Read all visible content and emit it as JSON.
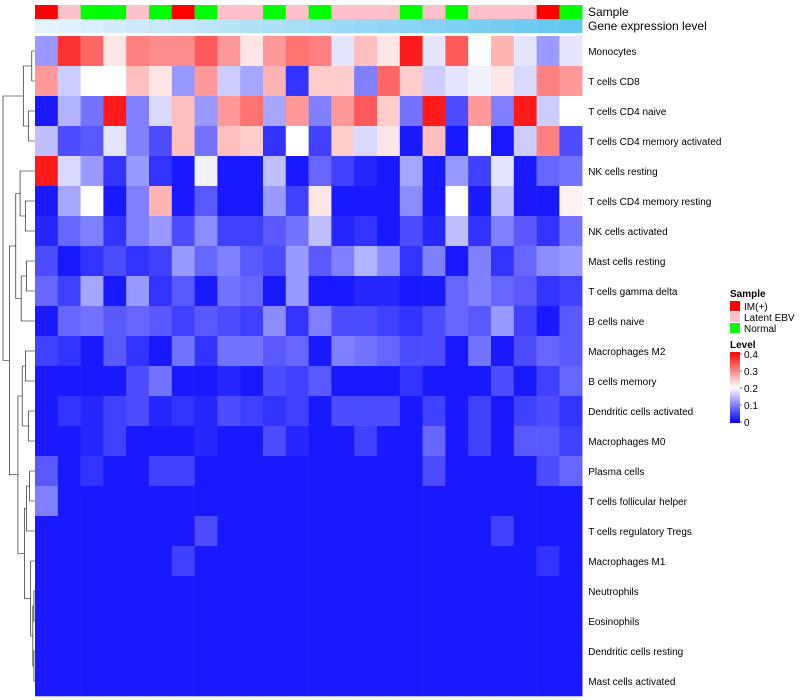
{
  "chart_data": {
    "type": "heatmap",
    "annotation_labels": [
      "Sample",
      "Gene expression level"
    ],
    "sample_legend": {
      "title": "Sample",
      "entries": [
        {
          "label": "IM(+)",
          "color": "#ff0000"
        },
        {
          "label": "Latent EBV",
          "color": "#ffc0cb"
        },
        {
          "label": "Normal",
          "color": "#00ff00"
        }
      ]
    },
    "level_legend": {
      "title": "Level",
      "ticks": [
        "0.4",
        "0.3",
        "0.2",
        "0.1",
        "0"
      ],
      "range": [
        0,
        0.4
      ],
      "colors": {
        "low": "#0000ff",
        "mid": "#ffffff",
        "high": "#ff0000"
      }
    },
    "sample_groups": [
      "IM(+)",
      "Latent EBV",
      "Normal",
      "Normal",
      "Latent EBV",
      "Normal",
      "IM(+)",
      "Normal",
      "Latent EBV",
      "Latent EBV",
      "Normal",
      "Latent EBV",
      "Normal",
      "Latent EBV",
      "Latent EBV",
      "Latent EBV",
      "Normal",
      "Latent EBV",
      "Normal",
      "Latent EBV",
      "Latent EBV",
      "Latent EBV",
      "IM(+)",
      "Normal"
    ],
    "expression_level": [
      0.02,
      0.06,
      0.1,
      0.14,
      0.18,
      0.22,
      0.26,
      0.3,
      0.34,
      0.38,
      0.42,
      0.46,
      0.5,
      0.54,
      0.58,
      0.62,
      0.66,
      0.7,
      0.74,
      0.78,
      0.82,
      0.86,
      0.9,
      0.94
    ],
    "rows": [
      "Monocytes",
      "T cells CD8",
      "T cells CD4 naive",
      "T cells CD4 memory activated",
      "NK cells resting",
      "T cells CD4 memory resting",
      "NK cells activated",
      "Mast cells resting",
      "T cells gamma delta",
      "B cells naive",
      "Macrophages M2",
      "B cells memory",
      "Dendritic cells activated",
      "Macrophages M0",
      "Plasma cells",
      "T cells follicular helper",
      "T cells regulatory  Tregs",
      "Macrophages M1",
      "Neutrophils",
      "Eosinophils",
      "Dendritic cells resting",
      "Mast cells activated"
    ],
    "values": [
      [
        0.12,
        0.36,
        0.32,
        0.22,
        0.3,
        0.29,
        0.29,
        0.33,
        0.28,
        0.22,
        0.28,
        0.31,
        0.3,
        0.18,
        0.25,
        0.22,
        0.38,
        0.18,
        0.33,
        0.2,
        0.26,
        0.18,
        0.12,
        0.18
      ],
      [
        0.28,
        0.16,
        0.2,
        0.2,
        0.25,
        0.22,
        0.12,
        0.28,
        0.16,
        0.13,
        0.26,
        0.04,
        0.24,
        0.24,
        0.1,
        0.32,
        0.24,
        0.16,
        0.18,
        0.19,
        0.22,
        0.17,
        0.3,
        0.28
      ],
      [
        0.02,
        0.14,
        0.09,
        0.38,
        0.1,
        0.17,
        0.25,
        0.12,
        0.28,
        0.31,
        0.13,
        0.28,
        0.1,
        0.28,
        0.33,
        0.24,
        0.09,
        0.38,
        0.06,
        0.28,
        0.1,
        0.38,
        0.16,
        0.2
      ],
      [
        0.15,
        0.06,
        0.07,
        0.18,
        0.1,
        0.06,
        0.25,
        0.09,
        0.25,
        0.24,
        0.04,
        0.2,
        0.05,
        0.24,
        0.17,
        0.22,
        0.02,
        0.25,
        0.02,
        0.2,
        0.02,
        0.16,
        0.3,
        0.06
      ],
      [
        0.38,
        0.17,
        0.12,
        0.04,
        0.12,
        0.04,
        0.02,
        0.19,
        0.02,
        0.02,
        0.15,
        0.02,
        0.08,
        0.05,
        0.03,
        0.02,
        0.13,
        0.02,
        0.12,
        0.05,
        0.18,
        0.02,
        0.08,
        0.09
      ],
      [
        0.02,
        0.13,
        0.2,
        0.02,
        0.1,
        0.26,
        0.02,
        0.07,
        0.02,
        0.02,
        0.12,
        0.05,
        0.22,
        0.02,
        0.02,
        0.02,
        0.11,
        0.02,
        0.2,
        0.02,
        0.15,
        0.02,
        0.02,
        0.21
      ],
      [
        0.03,
        0.08,
        0.1,
        0.04,
        0.1,
        0.12,
        0.06,
        0.11,
        0.05,
        0.05,
        0.07,
        0.09,
        0.15,
        0.03,
        0.04,
        0.02,
        0.06,
        0.03,
        0.15,
        0.04,
        0.1,
        0.07,
        0.04,
        0.09
      ],
      [
        0.06,
        0.02,
        0.04,
        0.06,
        0.04,
        0.05,
        0.12,
        0.08,
        0.1,
        0.07,
        0.06,
        0.12,
        0.07,
        0.1,
        0.14,
        0.11,
        0.04,
        0.1,
        0.02,
        0.1,
        0.04,
        0.08,
        0.11,
        0.12
      ],
      [
        0.08,
        0.05,
        0.13,
        0.02,
        0.12,
        0.04,
        0.07,
        0.02,
        0.09,
        0.08,
        0.02,
        0.12,
        0.02,
        0.02,
        0.03,
        0.03,
        0.02,
        0.02,
        0.08,
        0.1,
        0.08,
        0.07,
        0.04,
        0.05
      ],
      [
        0.02,
        0.08,
        0.09,
        0.07,
        0.08,
        0.07,
        0.05,
        0.07,
        0.06,
        0.05,
        0.11,
        0.04,
        0.1,
        0.06,
        0.06,
        0.05,
        0.04,
        0.06,
        0.08,
        0.07,
        0.12,
        0.05,
        0.02,
        0.07
      ],
      [
        0.05,
        0.04,
        0.02,
        0.07,
        0.04,
        0.02,
        0.09,
        0.04,
        0.09,
        0.09,
        0.07,
        0.08,
        0.02,
        0.1,
        0.09,
        0.08,
        0.06,
        0.06,
        0.02,
        0.09,
        0.02,
        0.06,
        0.08,
        0.07
      ],
      [
        0.02,
        0.02,
        0.02,
        0.02,
        0.06,
        0.09,
        0.02,
        0.02,
        0.03,
        0.02,
        0.06,
        0.05,
        0.07,
        0.02,
        0.02,
        0.02,
        0.04,
        0.02,
        0.02,
        0.02,
        0.06,
        0.02,
        0.05,
        0.08
      ],
      [
        0.02,
        0.04,
        0.03,
        0.05,
        0.06,
        0.03,
        0.04,
        0.03,
        0.06,
        0.05,
        0.04,
        0.05,
        0.02,
        0.06,
        0.06,
        0.06,
        0.02,
        0.05,
        0.02,
        0.05,
        0.02,
        0.05,
        0.06,
        0.04
      ],
      [
        0.02,
        0.02,
        0.03,
        0.05,
        0.02,
        0.02,
        0.02,
        0.03,
        0.02,
        0.02,
        0.06,
        0.03,
        0.02,
        0.02,
        0.05,
        0.02,
        0.02,
        0.08,
        0.02,
        0.05,
        0.02,
        0.07,
        0.07,
        0.05
      ],
      [
        0.07,
        0.02,
        0.04,
        0.02,
        0.02,
        0.05,
        0.05,
        0.02,
        0.02,
        0.02,
        0.02,
        0.02,
        0.02,
        0.02,
        0.02,
        0.02,
        0.02,
        0.06,
        0.02,
        0.02,
        0.02,
        0.02,
        0.06,
        0.08
      ],
      [
        0.1,
        0.02,
        0.02,
        0.02,
        0.02,
        0.02,
        0.02,
        0.02,
        0.02,
        0.02,
        0.02,
        0.02,
        0.02,
        0.02,
        0.02,
        0.02,
        0.02,
        0.02,
        0.02,
        0.02,
        0.02,
        0.02,
        0.02,
        0.02
      ],
      [
        0.02,
        0.02,
        0.02,
        0.02,
        0.02,
        0.02,
        0.02,
        0.06,
        0.02,
        0.02,
        0.02,
        0.02,
        0.02,
        0.02,
        0.02,
        0.02,
        0.02,
        0.02,
        0.02,
        0.02,
        0.05,
        0.02,
        0.02,
        0.02
      ],
      [
        0.02,
        0.02,
        0.02,
        0.02,
        0.02,
        0.02,
        0.05,
        0.02,
        0.02,
        0.02,
        0.02,
        0.02,
        0.02,
        0.02,
        0.02,
        0.02,
        0.02,
        0.02,
        0.02,
        0.02,
        0.02,
        0.02,
        0.04,
        0.02
      ],
      [
        0.02,
        0.02,
        0.02,
        0.02,
        0.02,
        0.02,
        0.02,
        0.02,
        0.02,
        0.02,
        0.02,
        0.02,
        0.02,
        0.02,
        0.02,
        0.02,
        0.02,
        0.02,
        0.02,
        0.02,
        0.02,
        0.02,
        0.02,
        0.02
      ],
      [
        0.02,
        0.02,
        0.02,
        0.02,
        0.02,
        0.02,
        0.02,
        0.02,
        0.02,
        0.02,
        0.02,
        0.02,
        0.02,
        0.02,
        0.02,
        0.02,
        0.02,
        0.02,
        0.02,
        0.02,
        0.02,
        0.02,
        0.02,
        0.02
      ],
      [
        0.02,
        0.02,
        0.02,
        0.02,
        0.02,
        0.02,
        0.02,
        0.02,
        0.02,
        0.02,
        0.02,
        0.02,
        0.02,
        0.02,
        0.02,
        0.02,
        0.02,
        0.02,
        0.02,
        0.02,
        0.02,
        0.02,
        0.02,
        0.02
      ],
      [
        0.02,
        0.02,
        0.02,
        0.02,
        0.02,
        0.02,
        0.02,
        0.02,
        0.02,
        0.02,
        0.02,
        0.02,
        0.02,
        0.02,
        0.02,
        0.02,
        0.02,
        0.02,
        0.02,
        0.02,
        0.02,
        0.02,
        0.02,
        0.02
      ]
    ]
  }
}
